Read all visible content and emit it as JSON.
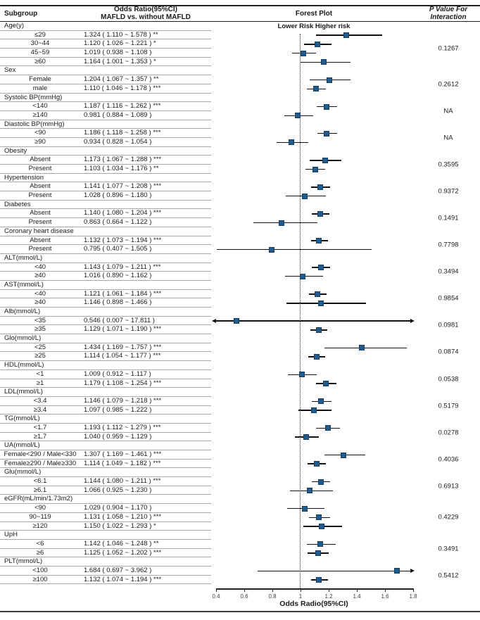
{
  "header": {
    "subgroup": "Subgroup",
    "or_line1": "Odds Ratio(95%CI)",
    "or_line2": "MAFLD vs. without MAFLD",
    "forest": "Forest Plot",
    "p_line1": "P Value For",
    "p_line2": "Interaction"
  },
  "colors": {
    "marker": "#1f5b8e",
    "marker_border": "#143d5f",
    "ci_line": "#111111",
    "separator": "#a9a9a9",
    "rule": "#222222"
  },
  "chart_data": {
    "type": "forest",
    "risk_label": "Lower Risk Higher risk",
    "axis": {
      "label": "Odds Radio(95%CI)",
      "ticks": [
        0.4,
        0.6,
        0.8,
        1,
        1.2,
        1.4,
        1.6,
        1.8
      ],
      "xlim": [
        0.4,
        1.8
      ],
      "ref_line": 1
    },
    "groups": [
      {
        "label": "Age(y)",
        "p_value": "0.1267",
        "items": [
          {
            "label": "≤29",
            "text": "1.324 ( 1.110 ~ 1.578 ) **",
            "or": 1.324,
            "lo": 1.11,
            "hi": 1.578
          },
          {
            "label": "30~44",
            "text": "1.120 ( 1.026 ~ 1.221 ) *",
            "or": 1.12,
            "lo": 1.026,
            "hi": 1.221
          },
          {
            "label": "45~59",
            "text": "1.019 ( 0.938 ~ 1.108 )",
            "or": 1.019,
            "lo": 0.938,
            "hi": 1.108
          },
          {
            "label": "≥60",
            "text": "1.164 ( 1.001 ~ 1.353 ) *",
            "or": 1.164,
            "lo": 1.001,
            "hi": 1.353
          }
        ]
      },
      {
        "label": "Sex",
        "p_value": "0.2612",
        "items": [
          {
            "label": "Female",
            "text": "1.204 ( 1.067 ~ 1.357 ) **",
            "or": 1.204,
            "lo": 1.067,
            "hi": 1.357
          },
          {
            "label": "male",
            "text": "1.110 ( 1.046 ~ 1.178 ) ***",
            "or": 1.11,
            "lo": 1.046,
            "hi": 1.178
          }
        ]
      },
      {
        "label": "Systolic BP(mmHg)",
        "p_value": "NA",
        "items": [
          {
            "label": "<140",
            "text": "1.187 ( 1.116 ~ 1.262 ) ***",
            "or": 1.187,
            "lo": 1.116,
            "hi": 1.262
          },
          {
            "label": "≥140",
            "text": "0.981 ( 0.884 ~ 1.089 )",
            "or": 0.981,
            "lo": 0.884,
            "hi": 1.089
          }
        ]
      },
      {
        "label": "Diastolic BP(mmHg)",
        "p_value": "NA",
        "items": [
          {
            "label": "<90",
            "text": "1.186 ( 1.118 ~ 1.258 ) ***",
            "or": 1.186,
            "lo": 1.118,
            "hi": 1.258
          },
          {
            "label": "≥90",
            "text": "0.934 ( 0.828 ~ 1.054 )",
            "or": 0.934,
            "lo": 0.828,
            "hi": 1.054
          }
        ]
      },
      {
        "label": "Obesity",
        "p_value": "0.3595",
        "items": [
          {
            "label": "Absent",
            "text": "1.173 ( 1.067 ~ 1.288 ) ***",
            "or": 1.173,
            "lo": 1.067,
            "hi": 1.288
          },
          {
            "label": "Present",
            "text": "1.103 ( 1.034 ~ 1.176 ) **",
            "or": 1.103,
            "lo": 1.034,
            "hi": 1.176
          }
        ]
      },
      {
        "label": "Hypertension",
        "p_value": "0.9372",
        "items": [
          {
            "label": "Absent",
            "text": "1.141 ( 1.077 ~ 1.208 ) ***",
            "or": 1.141,
            "lo": 1.077,
            "hi": 1.208
          },
          {
            "label": "Present",
            "text": "1.028 ( 0.896 ~ 1.180 )",
            "or": 1.028,
            "lo": 0.896,
            "hi": 1.18
          }
        ]
      },
      {
        "label": "Diabetes",
        "p_value": "0.1491",
        "items": [
          {
            "label": "Absent",
            "text": "1.140 ( 1.080 ~ 1.204 ) ***",
            "or": 1.14,
            "lo": 1.08,
            "hi": 1.204
          },
          {
            "label": "Present",
            "text": "0.863 ( 0.664 ~ 1.122 )",
            "or": 0.863,
            "lo": 0.664,
            "hi": 1.122
          }
        ]
      },
      {
        "label": "Coronary heart disease",
        "p_value": "0.7798",
        "items": [
          {
            "label": "Absent",
            "text": "1.132 ( 1.073 ~ 1.194 ) ***",
            "or": 1.132,
            "lo": 1.073,
            "hi": 1.194
          },
          {
            "label": "Present",
            "text": "0.795 ( 0.407 ~ 1.505 )",
            "or": 0.795,
            "lo": 0.407,
            "hi": 1.505
          }
        ]
      },
      {
        "label": "ALT(mmol/L)",
        "p_value": "0.3494",
        "items": [
          {
            "label": "<40",
            "text": "1.143 ( 1.079 ~ 1.211 ) ***",
            "or": 1.143,
            "lo": 1.079,
            "hi": 1.211
          },
          {
            "label": "≥40",
            "text": "1.016 ( 0.890 ~ 1.162 )",
            "or": 1.016,
            "lo": 0.89,
            "hi": 1.162
          }
        ]
      },
      {
        "label": "AST(mmol/L)",
        "p_value": "0.9854",
        "items": [
          {
            "label": "<40",
            "text": "1.121 ( 1.061 ~ 1.184 ) ***",
            "or": 1.121,
            "lo": 1.061,
            "hi": 1.184
          },
          {
            "label": "≥40",
            "text": "1.146 ( 0.898 ~ 1.466 )",
            "or": 1.146,
            "lo": 0.898,
            "hi": 1.466
          }
        ]
      },
      {
        "label": "Alb(mmol/L)",
        "p_value": "0.0981",
        "items": [
          {
            "label": "<35",
            "text": "0.546 ( 0.007 ~ 17.811 )",
            "or": 0.546,
            "lo": 0.007,
            "hi": 17.811
          },
          {
            "label": "≥35",
            "text": "1.129 ( 1.071 ~ 1.190 ) ***",
            "or": 1.129,
            "lo": 1.071,
            "hi": 1.19
          }
        ]
      },
      {
        "label": "Glo(mmol/L)",
        "p_value": "0.0874",
        "items": [
          {
            "label": "<25",
            "text": "1.434 ( 1.169 ~ 1.757 ) ***",
            "or": 1.434,
            "lo": 1.169,
            "hi": 1.757
          },
          {
            "label": "≥25",
            "text": "1.114 ( 1.054 ~ 1.177 ) ***",
            "or": 1.114,
            "lo": 1.054,
            "hi": 1.177
          }
        ]
      },
      {
        "label": "HDL(mmol/L)",
        "p_value": "0.0538",
        "items": [
          {
            "label": "<1",
            "text": "1.009 ( 0.912 ~ 1.117 )",
            "or": 1.009,
            "lo": 0.912,
            "hi": 1.117
          },
          {
            "label": "≥1",
            "text": "1.179 ( 1.108 ~ 1.254 ) ***",
            "or": 1.179,
            "lo": 1.108,
            "hi": 1.254
          }
        ]
      },
      {
        "label": "LDL(mmol/L)",
        "p_value": "0.5179",
        "items": [
          {
            "label": "<3.4",
            "text": "1.146 ( 1.079 ~ 1.218 ) ***",
            "or": 1.146,
            "lo": 1.079,
            "hi": 1.218
          },
          {
            "label": "≥3.4",
            "text": "1.097 ( 0.985 ~ 1.222 )",
            "or": 1.097,
            "lo": 0.985,
            "hi": 1.222
          }
        ]
      },
      {
        "label": "TG(mmol/L)",
        "p_value": "0.0278",
        "items": [
          {
            "label": "<1.7",
            "text": "1.193 ( 1.112 ~ 1.279 ) ***",
            "or": 1.193,
            "lo": 1.112,
            "hi": 1.279
          },
          {
            "label": "≥1.7",
            "text": "1.040 ( 0.959 ~ 1.129 )",
            "or": 1.04,
            "lo": 0.959,
            "hi": 1.129
          }
        ]
      },
      {
        "label": "UA(mmol/L)",
        "p_value": "0.4036",
        "items": [
          {
            "label": "Female<290 / Male<330",
            "text": "1.307 ( 1.169 ~ 1.461 ) ***",
            "or": 1.307,
            "lo": 1.169,
            "hi": 1.461
          },
          {
            "label": "Female≥290 / Male≥330",
            "text": "1.114 ( 1.049 ~ 1.182 ) ***",
            "or": 1.114,
            "lo": 1.049,
            "hi": 1.182
          }
        ]
      },
      {
        "label": "Glu(mmol/L)",
        "p_value": "0.6913",
        "items": [
          {
            "label": "<6.1",
            "text": "1.144 ( 1.080 ~ 1.211 ) ***",
            "or": 1.144,
            "lo": 1.08,
            "hi": 1.211
          },
          {
            "label": "≥6.1",
            "text": "1.066 ( 0.925 ~ 1.230 )",
            "or": 1.066,
            "lo": 0.925,
            "hi": 1.23
          }
        ]
      },
      {
        "label": "eGFR(mL/min/1.73m2)",
        "p_value": "0.4229",
        "items": [
          {
            "label": "<90",
            "text": "1.029 ( 0.904 ~ 1.170 )",
            "or": 1.029,
            "lo": 0.904,
            "hi": 1.17
          },
          {
            "label": "90~119",
            "text": "1.131 ( 1.058 ~ 1.210 ) ***",
            "or": 1.131,
            "lo": 1.058,
            "hi": 1.21
          },
          {
            "label": "≥120",
            "text": "1.150 ( 1.022 ~ 1.293 ) *",
            "or": 1.15,
            "lo": 1.022,
            "hi": 1.293
          }
        ]
      },
      {
        "label": "UpH",
        "p_value": "0.3491",
        "items": [
          {
            "label": "<6",
            "text": "1.142 ( 1.046 ~ 1.248 ) **",
            "or": 1.142,
            "lo": 1.046,
            "hi": 1.248
          },
          {
            "label": "≥6",
            "text": "1.125 ( 1.052 ~ 1.202 ) ***",
            "or": 1.125,
            "lo": 1.052,
            "hi": 1.202
          }
        ]
      },
      {
        "label": "PLT(mmol/L)",
        "p_value": "0.5412",
        "items": [
          {
            "label": "<100",
            "text": "1.684 ( 0.697 ~ 3.962 )",
            "or": 1.684,
            "lo": 0.697,
            "hi": 3.962
          },
          {
            "label": "≥100",
            "text": "1.132 ( 1.074 ~ 1.194 ) ***",
            "or": 1.132,
            "lo": 1.074,
            "hi": 1.194
          }
        ]
      }
    ]
  }
}
